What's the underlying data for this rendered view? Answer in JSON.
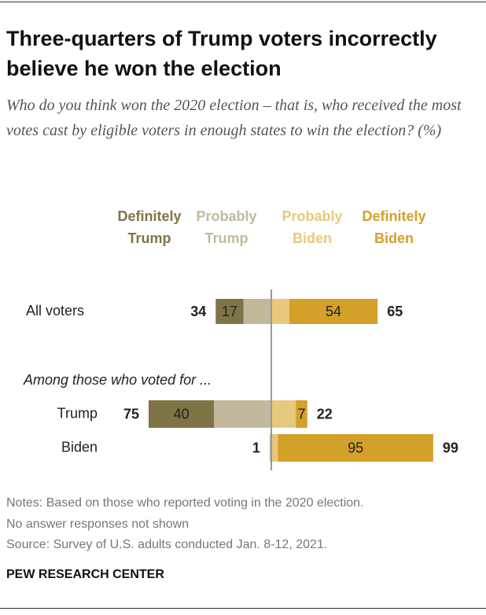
{
  "chart_data": {
    "type": "diverging_bar",
    "title": "Three-quarters of Trump voters incorrectly believe he won the election",
    "subtitle": "Who do you think won the 2020 election – that is, who received the most votes cast by eligible voters in enough states to win the election? (%)",
    "categories": [
      "All voters",
      "Trump",
      "Biden"
    ],
    "group_label": "Among those who voted for ...",
    "series": [
      {
        "name": "Definitely Trump",
        "color": "#7f7446",
        "side": "left",
        "show_labels": true,
        "values": [
          17,
          40,
          0
        ]
      },
      {
        "name": "Probably Trump",
        "color": "#c2b99d",
        "side": "left",
        "show_labels": false,
        "values": [
          17,
          35,
          1
        ]
      },
      {
        "name": "Probably Biden",
        "color": "#e8c87c",
        "side": "right",
        "show_labels": false,
        "values": [
          11,
          15,
          4
        ]
      },
      {
        "name": "Definitely Biden",
        "color": "#d3a02a",
        "side": "right",
        "show_labels": true,
        "values": [
          54,
          7,
          95
        ]
      }
    ],
    "trump_totals": [
      34,
      75,
      1
    ],
    "biden_totals": [
      65,
      22,
      99
    ],
    "notes": [
      "Notes: Based on those who reported voting in the 2020 election.",
      "No answer responses not shown",
      "Source: Survey of U.S. adults conducted Jan. 8-12, 2021."
    ],
    "footer": "PEW RESEARCH CENTER"
  }
}
